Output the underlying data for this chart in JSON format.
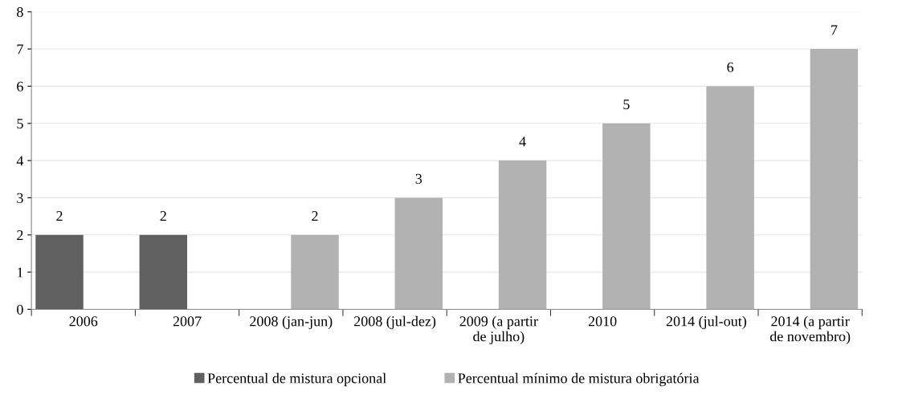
{
  "chart_data": {
    "type": "bar",
    "categories": [
      "2006",
      "2007",
      "2008 (jan-jun)",
      "2008 (jul-dez)",
      "2009 (a partir\nde julho)",
      "2010",
      "2014 (jul-out)",
      "2014 (a partir\nde novembro)"
    ],
    "series": [
      {
        "name": "Percentual de mistura opcional",
        "color": "#606060",
        "values": [
          2,
          2,
          null,
          null,
          null,
          null,
          null,
          null
        ]
      },
      {
        "name": "Percentual mínimo de mistura obrigatória",
        "color": "#b2b2b2",
        "values": [
          null,
          null,
          2,
          3,
          4,
          5,
          6,
          7
        ]
      }
    ],
    "ylim": [
      0,
      8
    ],
    "yticks": [
      0,
      1,
      2,
      3,
      4,
      5,
      6,
      7,
      8
    ],
    "grid": "y",
    "legend": "bottom",
    "data_labels": true
  }
}
